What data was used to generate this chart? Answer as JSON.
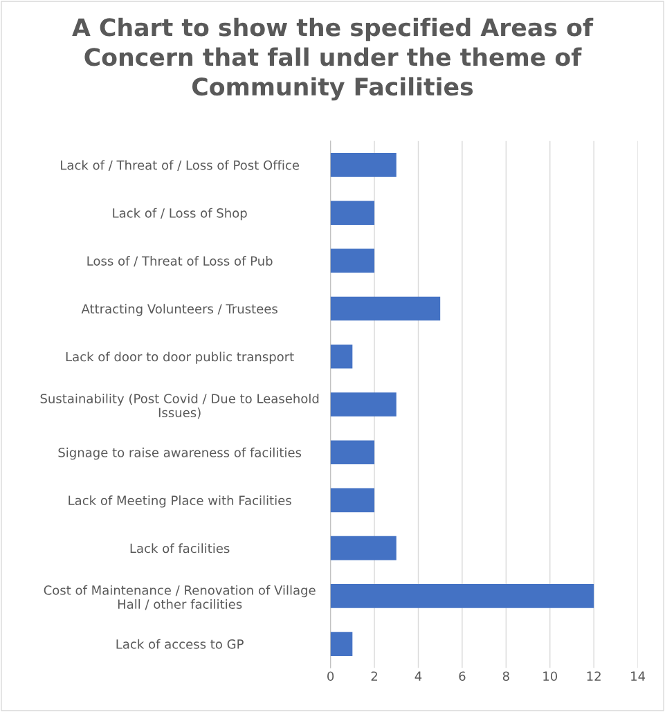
{
  "chart_data": {
    "type": "bar",
    "orientation": "horizontal",
    "title": "A Chart to show the specified Areas of\nConcern that fall under the theme of\nCommunity Facilities",
    "categories": [
      "Lack of / Threat of / Loss of Post Office",
      "Lack of / Loss of Shop",
      "Loss of / Threat of Loss of Pub",
      "Attracting Volunteers / Trustees",
      "Lack of door to door public transport",
      "Sustainability (Post Covid / Due to Leasehold\nIssues)",
      "Signage to raise awareness of facilities",
      "Lack of Meeting Place with Facilities",
      "Lack of facilities",
      "Cost of Maintenance / Renovation of Village\nHall / other facilities",
      "Lack of access to GP"
    ],
    "values": [
      3,
      2,
      2,
      5,
      1,
      3,
      2,
      2,
      3,
      12,
      1
    ],
    "color": "#4472c4",
    "xlim": [
      0,
      14
    ],
    "xticks": [
      0,
      2,
      4,
      6,
      8,
      10,
      12,
      14
    ],
    "grid": "x",
    "legend": false
  }
}
